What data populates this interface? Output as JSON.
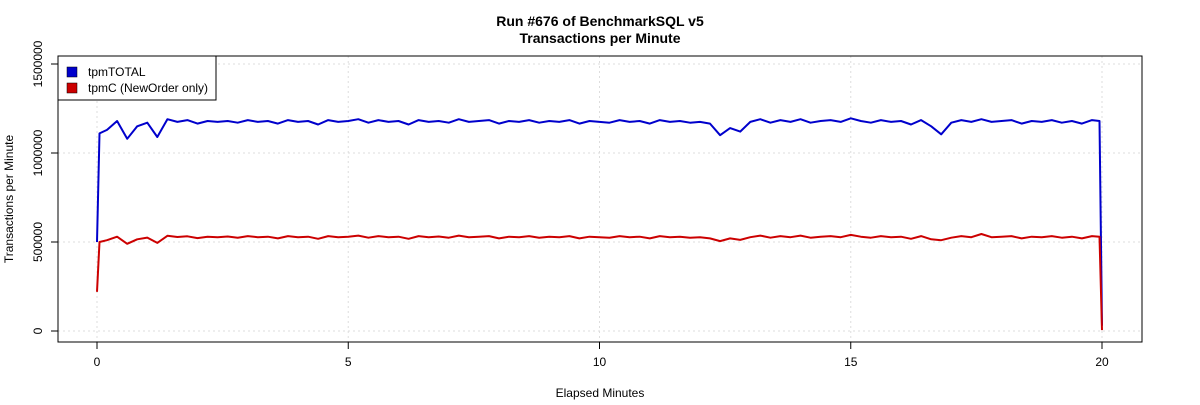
{
  "chart_data": {
    "type": "line",
    "title": "Run #676 of BenchmarkSQL v5",
    "subtitle": "Transactions per Minute",
    "xlabel": "Elapsed Minutes",
    "ylabel": "Transactions per Minute",
    "xlim": [
      -1.5,
      20.8
    ],
    "ylim": [
      -60000,
      1600000
    ],
    "xticks": [
      0,
      5,
      10,
      15,
      20
    ],
    "xtick_labels": [
      "0",
      "5",
      "10",
      "15",
      "20"
    ],
    "yticks": [
      0,
      500000,
      1000000,
      1500000
    ],
    "ytick_labels": [
      "0",
      "500000",
      "1000000",
      "1500000"
    ],
    "grid": true,
    "legend_position": "top-left",
    "series": [
      {
        "name": "tpmTOTAL",
        "color": "#0000CC",
        "x_start": 0.2,
        "x_step": 0.2,
        "head": [
          [
            0,
            500000
          ],
          [
            0.05,
            1110000
          ]
        ],
        "tail": [
          [
            19.95,
            1180000
          ],
          [
            20,
            30000
          ]
        ],
        "values": [
          1130000,
          1180000,
          1080000,
          1150000,
          1170000,
          1090000,
          1190000,
          1175000,
          1185000,
          1165000,
          1180000,
          1175000,
          1180000,
          1170000,
          1185000,
          1175000,
          1180000,
          1165000,
          1185000,
          1175000,
          1180000,
          1160000,
          1185000,
          1175000,
          1180000,
          1190000,
          1170000,
          1185000,
          1175000,
          1180000,
          1160000,
          1185000,
          1175000,
          1180000,
          1170000,
          1190000,
          1175000,
          1180000,
          1185000,
          1165000,
          1180000,
          1175000,
          1185000,
          1170000,
          1180000,
          1175000,
          1185000,
          1165000,
          1180000,
          1175000,
          1170000,
          1185000,
          1175000,
          1180000,
          1165000,
          1185000,
          1175000,
          1180000,
          1170000,
          1175000,
          1165000,
          1100000,
          1140000,
          1120000,
          1175000,
          1190000,
          1170000,
          1185000,
          1175000,
          1190000,
          1170000,
          1180000,
          1185000,
          1175000,
          1195000,
          1180000,
          1170000,
          1185000,
          1175000,
          1180000,
          1160000,
          1185000,
          1150000,
          1105000,
          1170000,
          1185000,
          1175000,
          1190000,
          1175000,
          1180000,
          1185000,
          1165000,
          1180000,
          1175000,
          1185000,
          1170000,
          1180000,
          1165000,
          1185000
        ]
      },
      {
        "name": "tpmC (NewOrder only)",
        "color": "#CC0000",
        "x_start": 0.2,
        "x_step": 0.2,
        "head": [
          [
            0,
            220000
          ],
          [
            0.05,
            500000
          ]
        ],
        "tail": [
          [
            19.95,
            530000
          ],
          [
            20,
            5000
          ]
        ],
        "values": [
          510000,
          530000,
          490000,
          515000,
          525000,
          495000,
          535000,
          528000,
          532000,
          522000,
          530000,
          527000,
          531000,
          524000,
          533000,
          527000,
          530000,
          520000,
          533000,
          527000,
          530000,
          518000,
          533000,
          527000,
          530000,
          536000,
          524000,
          533000,
          527000,
          530000,
          518000,
          533000,
          527000,
          531000,
          524000,
          536000,
          527000,
          530000,
          533000,
          520000,
          530000,
          527000,
          533000,
          524000,
          530000,
          527000,
          533000,
          520000,
          530000,
          527000,
          524000,
          533000,
          527000,
          530000,
          520000,
          533000,
          527000,
          530000,
          524000,
          527000,
          520000,
          505000,
          520000,
          512000,
          527000,
          536000,
          524000,
          533000,
          527000,
          536000,
          524000,
          530000,
          533000,
          527000,
          540000,
          530000,
          524000,
          533000,
          527000,
          530000,
          518000,
          533000,
          515000,
          510000,
          524000,
          533000,
          527000,
          545000,
          527000,
          530000,
          533000,
          520000,
          530000,
          527000,
          533000,
          524000,
          530000,
          520000,
          533000
        ]
      }
    ]
  }
}
